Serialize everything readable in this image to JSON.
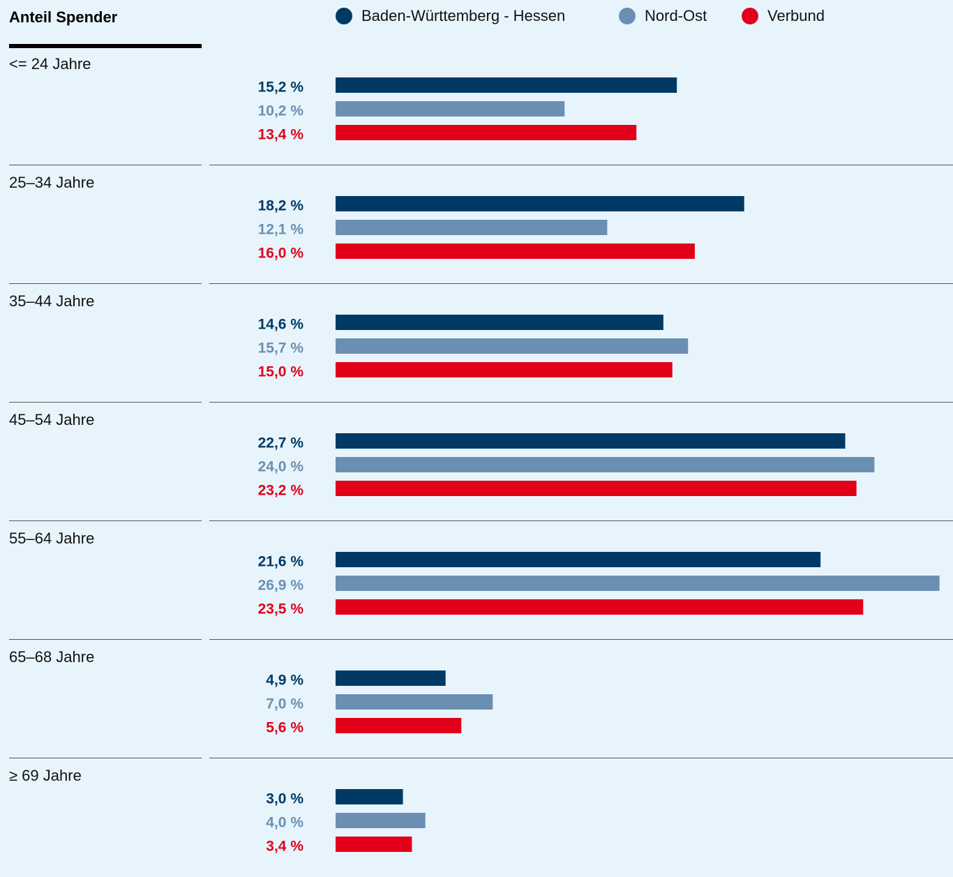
{
  "chart_data": {
    "type": "bar",
    "orientation": "horizontal",
    "title": "Anteil Spender",
    "categories": [
      "<= 24 Jahre",
      "25–34 Jahre",
      "35–44 Jahre",
      "45–54 Jahre",
      "55–64 Jahre",
      "65–68 Jahre",
      "≥ 69 Jahre"
    ],
    "xlim": [
      0,
      27.5
    ],
    "series": [
      {
        "name": "Baden-Württemberg - Hessen",
        "color": "#003a64",
        "values": [
          15.2,
          18.2,
          14.6,
          22.7,
          21.6,
          4.9,
          3.0
        ],
        "value_labels": [
          "15,2 %",
          "18,2 %",
          "14,6 %",
          "22,7 %",
          "21,6 %",
          "4,9 %",
          "3,0 %"
        ]
      },
      {
        "name": "Nord-Ost",
        "color": "#6b8fb3",
        "values": [
          10.2,
          12.1,
          15.7,
          24.0,
          26.9,
          7.0,
          4.0
        ],
        "value_labels": [
          "10,2 %",
          "12,1 %",
          "15,7 %",
          "24,0 %",
          "26,9 %",
          "7,0 %",
          "4,0 %"
        ]
      },
      {
        "name": "Verbund",
        "color": "#e2001a",
        "values": [
          13.4,
          16.0,
          15.0,
          23.2,
          23.5,
          5.6,
          3.4
        ],
        "value_labels": [
          "13,4 %",
          "16,0 %",
          "15,0 %",
          "23,2 %",
          "23,5 %",
          "5,6 %",
          "3,4 %"
        ]
      }
    ]
  }
}
